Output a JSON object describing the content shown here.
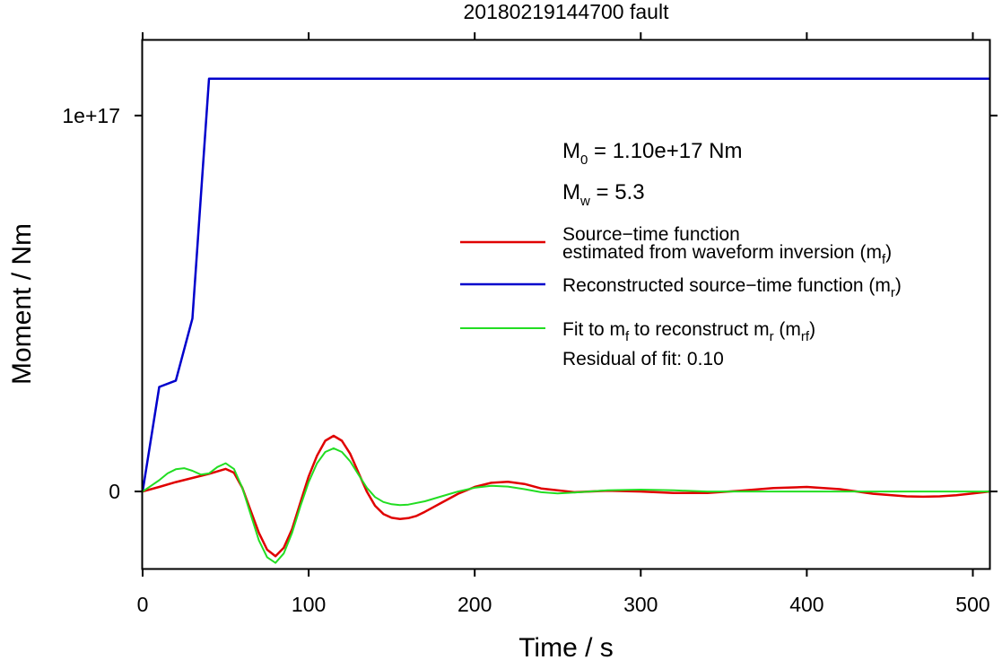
{
  "chart_data": {
    "type": "line",
    "title": "20180219144700 fault",
    "xlabel": "Time / s",
    "ylabel": "Moment / Nm",
    "xlim": [
      0,
      510
    ],
    "ylim": [
      -2.05e+16,
      1.2e+17
    ],
    "x_ticks": [
      0,
      100,
      200,
      300,
      400,
      500
    ],
    "x_tick_labels": [
      "0",
      "100",
      "200",
      "300",
      "400",
      "500"
    ],
    "y_ticks": [
      0,
      1e+17
    ],
    "y_tick_labels": [
      "0",
      "1e+17"
    ],
    "grid": false,
    "legend_position": "right",
    "annotations": {
      "m0_prefix": "M",
      "m0_sub": "0",
      "m0_value": " = 1.10e+17 Nm",
      "mw_prefix": "M",
      "mw_sub": "w",
      "mw_value": " = 5.3",
      "residual": "Residual of fit: 0.10"
    },
    "series": [
      {
        "key": "mf",
        "color": "#e00000",
        "legend_lines": [
          [
            {
              "t": "Source−time function"
            }
          ],
          [
            {
              "t": "estimated from waveform inversion (m"
            },
            {
              "t": "f",
              "sub": true
            },
            {
              "t": ")"
            }
          ]
        ],
        "x": [
          0,
          10,
          20,
          30,
          40,
          50,
          55,
          60,
          65,
          70,
          75,
          80,
          85,
          90,
          95,
          100,
          105,
          110,
          115,
          120,
          125,
          130,
          135,
          140,
          145,
          150,
          155,
          160,
          165,
          170,
          175,
          180,
          190,
          200,
          210,
          220,
          230,
          240,
          260,
          280,
          300,
          320,
          340,
          360,
          380,
          400,
          420,
          440,
          460,
          470,
          480,
          490,
          500,
          510
        ],
        "y": [
          0,
          1200000000000000.0,
          2500000000000000.0,
          3600000000000000.0,
          4700000000000000.0,
          6000000000000000.0,
          5000000000000000.0,
          1000000000000000.0,
          -5000000000000000.0,
          -1.1e+16,
          -1.55e+16,
          -1.72e+16,
          -1.5e+16,
          -1e+16,
          -3000000000000000.0,
          4000000000000000.0,
          9500000000000000.0,
          1.35e+16,
          1.48e+16,
          1.35e+16,
          1e+16,
          5000000000000000.0,
          0,
          -3800000000000000.0,
          -6000000000000000.0,
          -7000000000000000.0,
          -7300000000000000.0,
          -7100000000000000.0,
          -6500000000000000.0,
          -5400000000000000.0,
          -4200000000000000.0,
          -3000000000000000.0,
          -600000000000000.0,
          1200000000000000.0,
          2300000000000000.0,
          2600000000000000.0,
          2000000000000000.0,
          800000000000000.0,
          -200000000000000.0,
          200000000000000.0,
          0,
          -400000000000000.0,
          -400000000000000.0,
          200000000000000.0,
          900000000000000.0,
          1200000000000000.0,
          600000000000000.0,
          -600000000000000.0,
          -1300000000000000.0,
          -1400000000000000.0,
          -1300000000000000.0,
          -1000000000000000.0,
          -500000000000000.0,
          0
        ]
      },
      {
        "key": "mr",
        "color": "#0000cc",
        "legend_lines": [
          [
            {
              "t": "Reconstructed source−time function (m"
            },
            {
              "t": "r",
              "sub": true
            },
            {
              "t": ")"
            }
          ]
        ],
        "x": [
          0,
          10,
          20,
          30,
          40,
          510
        ],
        "y": [
          0,
          2.78e+16,
          2.95e+16,
          4.6e+16,
          1.098e+17,
          1.098e+17
        ]
      },
      {
        "key": "mrf",
        "color": "#22dd22",
        "legend_lines": [
          [
            {
              "t": "Fit to m"
            },
            {
              "t": "f",
              "sub": true
            },
            {
              "t": " to reconstruct m"
            },
            {
              "t": "r",
              "sub": true
            },
            {
              "t": " (m"
            },
            {
              "t": "rf",
              "sub": true
            },
            {
              "t": ")"
            }
          ]
        ],
        "x": [
          0,
          5,
          10,
          15,
          20,
          25,
          30,
          35,
          40,
          45,
          50,
          55,
          60,
          65,
          70,
          75,
          80,
          85,
          90,
          95,
          100,
          105,
          110,
          115,
          120,
          125,
          130,
          135,
          140,
          145,
          150,
          155,
          160,
          170,
          180,
          190,
          200,
          210,
          220,
          230,
          240,
          250,
          260,
          280,
          300,
          320,
          340,
          360,
          380,
          400,
          420,
          440,
          460,
          480,
          500,
          510
        ],
        "y": [
          0,
          1500000000000000.0,
          3000000000000000.0,
          4800000000000000.0,
          5900000000000000.0,
          6200000000000000.0,
          5500000000000000.0,
          4500000000000000.0,
          4800000000000000.0,
          6500000000000000.0,
          7500000000000000.0,
          6000000000000000.0,
          1000000000000000.0,
          -6000000000000000.0,
          -1.3e+16,
          -1.75e+16,
          -1.9e+16,
          -1.65e+16,
          -1.1e+16,
          -4000000000000000.0,
          2500000000000000.0,
          7500000000000000.0,
          1.05e+16,
          1.15e+16,
          1.05e+16,
          8000000000000000.0,
          4500000000000000.0,
          1000000000000000.0,
          -1500000000000000.0,
          -2800000000000000.0,
          -3400000000000000.0,
          -3600000000000000.0,
          -3500000000000000.0,
          -2600000000000000.0,
          -1300000000000000.0,
          0,
          1000000000000000.0,
          1500000000000000.0,
          1300000000000000.0,
          600000000000000.0,
          -200000000000000.0,
          -500000000000000.0,
          -300000000000000.0,
          300000000000000.0,
          500000000000000.0,
          300000000000000.0,
          0,
          0,
          0,
          0,
          0,
          0,
          0,
          0,
          0,
          0
        ]
      }
    ]
  }
}
